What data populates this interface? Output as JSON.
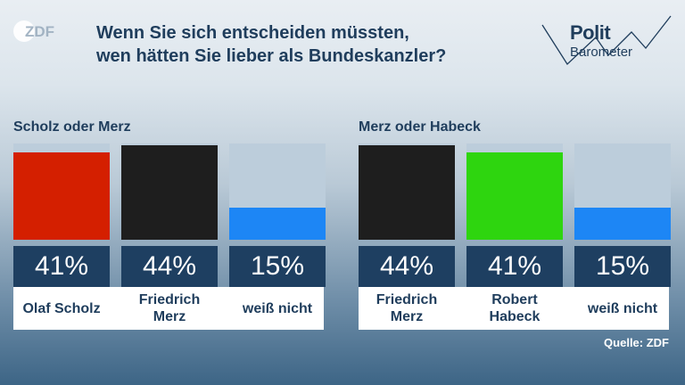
{
  "brand": {
    "logo_text": "ZDF",
    "polit_line1": "Polit",
    "polit_line2": "Barometer"
  },
  "title_line1": "Wenn Sie sich entscheiden müssten,",
  "title_line2": "wen hätten Sie lieber als Bundeskanzler?",
  "source": "Quelle: ZDF",
  "colors": {
    "scholz": "#d41f00",
    "merz": "#1e1e1e",
    "habeck": "#2ed50f",
    "weiss_nicht": "#1d86f5",
    "bar_background": "#bccddb",
    "percent_box": "#1e3f61"
  },
  "chart_data": [
    {
      "type": "bar",
      "title": "Scholz oder Merz",
      "unit": "%",
      "ylim": [
        0,
        45
      ],
      "categories": [
        "Olaf Scholz",
        "Friedrich Merz",
        "weiß nicht"
      ],
      "values": [
        41,
        44,
        15
      ],
      "labels": [
        "Olaf Scholz",
        "Friedrich\nMerz",
        "weiß nicht"
      ],
      "value_labels": [
        "41%",
        "44%",
        "15%"
      ],
      "colors": [
        "#d41f00",
        "#1e1e1e",
        "#1d86f5"
      ]
    },
    {
      "type": "bar",
      "title": "Merz oder Habeck",
      "unit": "%",
      "ylim": [
        0,
        45
      ],
      "categories": [
        "Friedrich Merz",
        "Robert Habeck",
        "weiß nicht"
      ],
      "values": [
        44,
        41,
        15
      ],
      "labels": [
        "Friedrich\nMerz",
        "Robert\nHabeck",
        "weiß nicht"
      ],
      "value_labels": [
        "44%",
        "41%",
        "15%"
      ],
      "colors": [
        "#1e1e1e",
        "#2ed50f",
        "#1d86f5"
      ]
    }
  ]
}
